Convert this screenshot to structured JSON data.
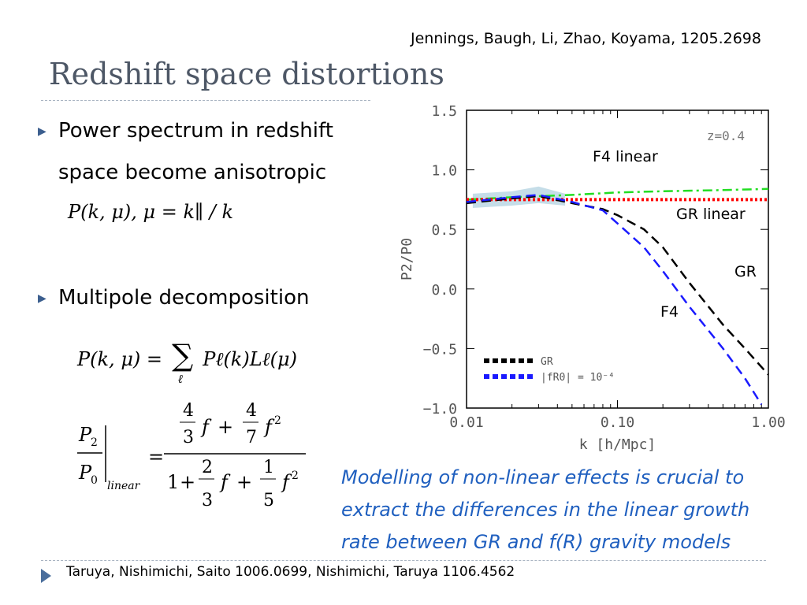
{
  "header": {
    "citation": "Jennings, Baugh, Li, Zhao, Koyama,  1205.2698",
    "title": "Redshift space distortions"
  },
  "bullets": [
    {
      "line1": "Power spectrum in redshift",
      "line2": "space become anisotropic"
    },
    {
      "line1": "Multipole decomposition"
    }
  ],
  "equations": {
    "anisotropic": "P(k, μ),   μ = k∥ / k",
    "decomposition_lhs": "P(k, μ) =",
    "decomposition_rhs": "Pℓ(k)Lℓ(μ)",
    "sum_index": "ℓ",
    "ratio_subscript": "linear"
  },
  "chart_data": {
    "type": "line",
    "xlabel": "k [h/Mpc]",
    "ylabel": "P2/P0",
    "xscale": "log",
    "xlim": [
      0.01,
      1.0
    ],
    "ylim": [
      -1.0,
      1.5
    ],
    "xticks": [
      "0.01",
      "0.10",
      "1.00"
    ],
    "yticks": [
      "1.5",
      "1.0",
      "0.5",
      "0.0",
      "−0.5",
      "−1.0"
    ],
    "annotation": "z=0.4",
    "legend": [
      "GR",
      "|fR0| = 10⁻⁴"
    ],
    "legend_position": "bottom-left",
    "labels": [
      "F4 linear",
      "GR linear",
      "GR",
      "F4"
    ],
    "series": [
      {
        "name": "F4 linear",
        "color": "#22dd22",
        "dash": "dash-dot",
        "x": [
          0.01,
          0.02,
          0.05,
          0.1,
          0.2,
          0.5,
          1.0
        ],
        "y": [
          0.75,
          0.77,
          0.79,
          0.81,
          0.82,
          0.83,
          0.84
        ]
      },
      {
        "name": "GR linear",
        "color": "#ff0000",
        "dash": "dotted",
        "x": [
          0.01,
          1.0
        ],
        "y": [
          0.75,
          0.75
        ]
      },
      {
        "name": "GR",
        "color": "#000000",
        "dash": "dashed",
        "x": [
          0.01,
          0.02,
          0.03,
          0.05,
          0.08,
          0.1,
          0.15,
          0.2,
          0.3,
          0.5,
          0.7,
          1.0
        ],
        "y": [
          0.72,
          0.76,
          0.78,
          0.72,
          0.67,
          0.62,
          0.5,
          0.35,
          0.05,
          -0.3,
          -0.5,
          -0.72
        ]
      },
      {
        "name": "F4",
        "color": "#1a1aff",
        "dash": "dashed",
        "x": [
          0.01,
          0.02,
          0.03,
          0.05,
          0.08,
          0.1,
          0.15,
          0.2,
          0.3,
          0.5,
          0.7,
          0.9
        ],
        "y": [
          0.73,
          0.77,
          0.79,
          0.73,
          0.66,
          0.55,
          0.35,
          0.15,
          -0.15,
          -0.5,
          -0.75,
          -0.97
        ]
      }
    ]
  },
  "callout": {
    "line1": "Modelling of non-linear effects is crucial to",
    "line2": "extract the differences in the linear growth",
    "line3": "rate between GR and f(R) gravity models"
  },
  "footer": {
    "citation": "Taruya, Nishimichi, Saito 1006.0699,  Nishimichi, Taruya   1106.4562"
  },
  "colors": {
    "title": "#4d5766",
    "callout": "#1f5fbf",
    "bullet": "#3b5e8e"
  }
}
